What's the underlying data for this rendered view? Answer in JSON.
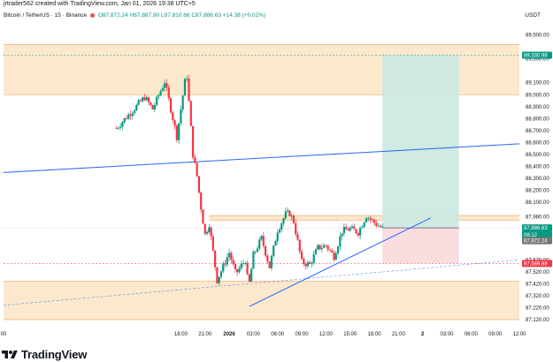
{
  "header": {
    "author_line": "jrtrader562 created with TradingView.com, Jan 01, 2026 19:38 UTC+5",
    "symbol": "Bitcoin / TetherUS · 15 · Binance",
    "ohlc": "O87,872.24 H87,887.80 L87,810.66 C87,886.63",
    "change": "+14.38 (+0.02%)",
    "currency": "USDT"
  },
  "footer": {
    "brand": "TradingView"
  },
  "colors": {
    "up": "#089981",
    "down": "#f23645",
    "zone": "#fce4c4",
    "zone_line": "#f0b070",
    "trend": "#2962ff",
    "long_green": "#cbe9e0",
    "long_red": "#f9d9dc"
  },
  "chart_data": {
    "type": "candlestick",
    "symbol": "BTCUSDT",
    "timeframe": "15",
    "ylim": [
      87120,
      89600
    ],
    "y_ticks": [
      "89,500.00",
      "89,300.00",
      "89,100.00",
      "89,000.00",
      "88,900.00",
      "88,800.00",
      "88,700.00",
      "88,600.00",
      "88,500.00",
      "88,400.00",
      "88,300.00",
      "88,200.00",
      "88,100.00",
      "87,980.00",
      "87,620.00",
      "87,520.00",
      "87,420.00",
      "87,320.00",
      "87,220.00",
      "87,120.00"
    ],
    "x_ticks": [
      "00",
      "18:00",
      "21:00",
      "2026",
      "03:00",
      "06:00",
      "09:00",
      "12:00",
      "15:00",
      "18:00",
      "21:00",
      "2",
      "03:00",
      "06:00",
      "09:00",
      "12:00"
    ],
    "x_tick_hours": [
      -4,
      18,
      21,
      24,
      27,
      30,
      33,
      36,
      39,
      42,
      45,
      48,
      51,
      54,
      57,
      60
    ],
    "candles_path": [
      [
        10,
        88720
      ],
      [
        13.5,
        88980
      ],
      [
        14.5,
        88880
      ],
      [
        16,
        89110
      ],
      [
        17.5,
        88650
      ],
      [
        18.7,
        89200
      ],
      [
        19.5,
        88500
      ],
      [
        20,
        88320
      ],
      [
        20.4,
        88100
      ],
      [
        21,
        87830
      ],
      [
        21.5,
        87920
      ],
      [
        22.5,
        87450
      ],
      [
        24,
        87680
      ],
      [
        24.8,
        87500
      ],
      [
        26,
        87620
      ],
      [
        26.4,
        87380
      ],
      [
        27,
        87660
      ],
      [
        28,
        87800
      ],
      [
        29,
        87560
      ],
      [
        30,
        87870
      ],
      [
        31,
        88000
      ],
      [
        31.5,
        88010
      ],
      [
        32,
        87940
      ],
      [
        33,
        87600
      ],
      [
        34,
        87580
      ],
      [
        35,
        87720
      ],
      [
        36,
        87740
      ],
      [
        37,
        87650
      ],
      [
        38,
        87860
      ],
      [
        39,
        87880
      ],
      [
        40,
        87850
      ],
      [
        41,
        87990
      ],
      [
        42,
        87930
      ],
      [
        43,
        87882
      ]
    ],
    "price_tags": [
      {
        "label": "89,330.98",
        "price": 89330.98,
        "color": "#089981"
      },
      {
        "label": "87,886.63",
        "price": 87886.63,
        "color": "#089981"
      },
      {
        "label": "06:12",
        "price": 87830,
        "color": "#089981"
      },
      {
        "label": "87,872.24",
        "price": 87780,
        "color": "#757575"
      },
      {
        "label": "87,589.88",
        "price": 87589.88,
        "color": "#f23645"
      }
    ],
    "zones": [
      {
        "name": "upper-supply",
        "from": 89000,
        "to": 89420
      },
      {
        "name": "mid-band",
        "from": 87950,
        "to": 87990
      },
      {
        "name": "lower-demand",
        "from": 87120,
        "to": 87440
      }
    ],
    "long_position": {
      "entry": 87886.63,
      "target": 89330.98,
      "stop": 87589.88,
      "start_hour": 43,
      "end_hour": 52.5
    },
    "trendlines": [
      {
        "name": "upper-channel",
        "p1": [
          -4,
          88350
        ],
        "p2": [
          60,
          88590
        ]
      },
      {
        "name": "rising-support",
        "p1": [
          26.5,
          87230
        ],
        "p2": [
          49,
          87970
        ]
      },
      {
        "name": "dashed-support",
        "p1": [
          -4,
          87240
        ],
        "p2": [
          60,
          87620
        ]
      }
    ]
  }
}
